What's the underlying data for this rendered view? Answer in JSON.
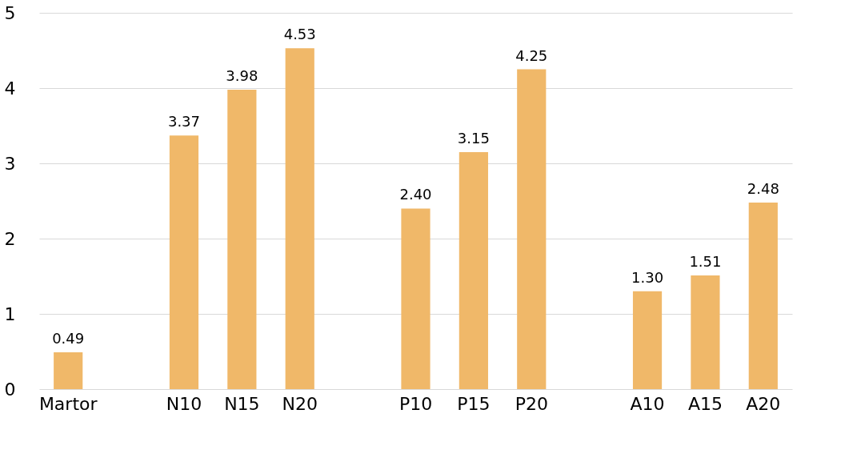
{
  "chart_data": {
    "type": "bar",
    "categories": [
      "Martor",
      null,
      "N10",
      "N15",
      "N20",
      null,
      "P10",
      "P15",
      "P20",
      null,
      "A10",
      "A15",
      "A20"
    ],
    "values": [
      0.49,
      null,
      3.37,
      3.98,
      4.53,
      null,
      2.4,
      3.15,
      4.25,
      null,
      1.3,
      1.51,
      2.48
    ],
    "value_labels": [
      "0.49",
      null,
      "3.37",
      "3.98",
      "4.53",
      null,
      "2.40",
      "3.15",
      "4.25",
      null,
      "1.30",
      "1.51",
      "2.48"
    ],
    "color": "#f0b869",
    "ylim": [
      0,
      5
    ],
    "yticks": [
      0,
      1,
      2,
      3,
      4,
      5
    ],
    "grid": "y"
  }
}
